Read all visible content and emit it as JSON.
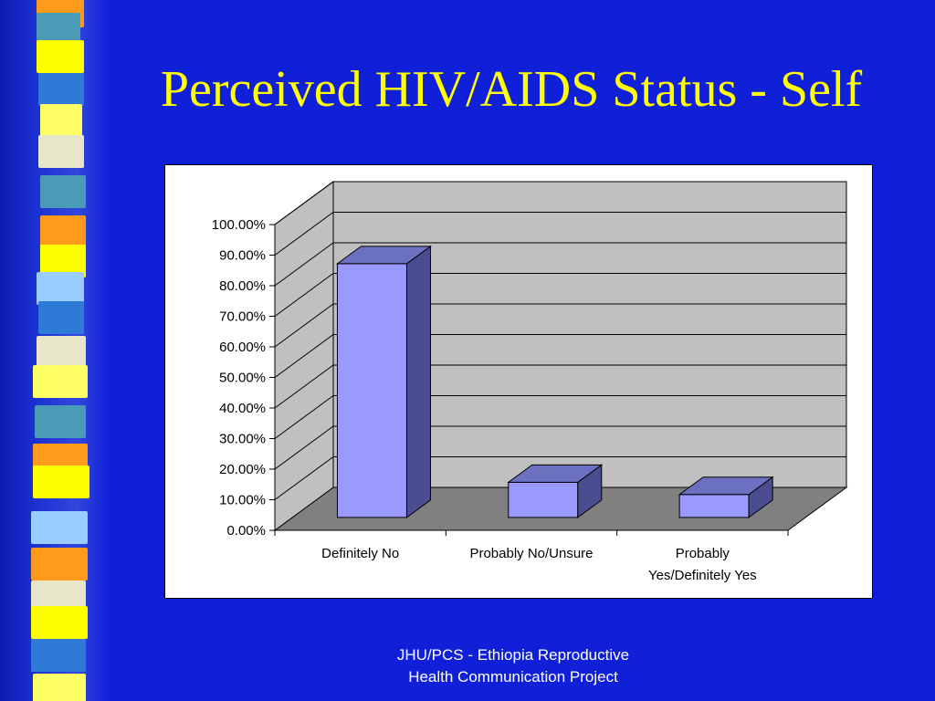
{
  "title": "Perceived HIV/AIDS Status - Self",
  "footer": {
    "line1": "JHU/PCS - Ethiopia Reproductive",
    "line2": "Health Communication Project"
  },
  "colors": {
    "background": "#0f20d8",
    "title": "#ffff00",
    "bar_front": "#9999ff",
    "bar_side": "#4a4d8f",
    "bar_top": "#6b70c0",
    "wall": "#c0c0c0",
    "floor": "#808080"
  },
  "chart_data": {
    "type": "bar",
    "style": "3d-column",
    "categories": [
      "Definitely No",
      "Probably No/Unsure",
      "Probably Yes/Definitely Yes"
    ],
    "category_lines": [
      [
        "Definitely No"
      ],
      [
        "Probably No/Unsure"
      ],
      [
        "Probably",
        "Yes/Definitely Yes"
      ]
    ],
    "values": [
      0.83,
      0.115,
      0.075
    ],
    "ylim": [
      0,
      1
    ],
    "yticks": [
      0,
      0.1,
      0.2,
      0.3,
      0.4,
      0.5,
      0.6,
      0.7,
      0.8,
      0.9,
      1.0
    ],
    "ytick_labels": [
      "0.00%",
      "10.00%",
      "20.00%",
      "30.00%",
      "40.00%",
      "50.00%",
      "60.00%",
      "70.00%",
      "80.00%",
      "90.00%",
      "100.00%"
    ],
    "grid": true,
    "legend": "none"
  }
}
